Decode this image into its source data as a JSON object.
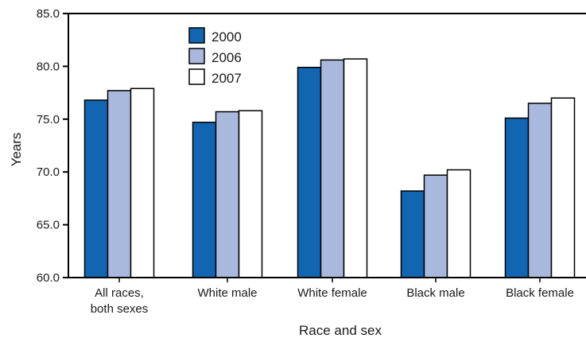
{
  "chart_data": {
    "type": "bar",
    "title": "",
    "xlabel": "Race and sex",
    "ylabel": "Years",
    "ylim": [
      60,
      85
    ],
    "yticks": [
      "60.0",
      "65.0",
      "70.0",
      "75.0",
      "80.0",
      "85.0"
    ],
    "categories": [
      [
        "All races,",
        "both sexes"
      ],
      [
        "White male"
      ],
      [
        "White female"
      ],
      [
        "Black male"
      ],
      [
        "Black female"
      ]
    ],
    "series": [
      {
        "name": "2000",
        "color": "#1265b0",
        "values": [
          76.8,
          74.7,
          79.9,
          68.2,
          75.1
        ]
      },
      {
        "name": "2006",
        "color": "#a9b9de",
        "values": [
          77.7,
          75.7,
          80.6,
          69.7,
          76.5
        ]
      },
      {
        "name": "2007",
        "color": "#ffffff",
        "values": [
          77.9,
          75.8,
          80.7,
          70.2,
          77.0
        ]
      }
    ],
    "legend_position": "top-left",
    "grid": false
  }
}
